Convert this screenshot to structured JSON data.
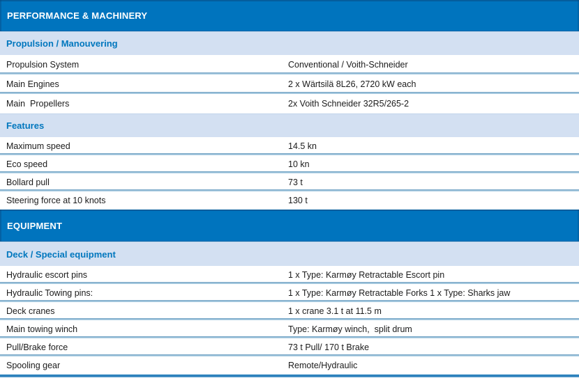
{
  "document": {
    "kind": "vessel-specification-sheet"
  },
  "colors": {
    "section_header_bg": "#0074BE",
    "section_header_text": "#FFFFFF",
    "subsection_bg": "#D3E0F2",
    "subsection_text": "#0077BE",
    "row_text": "#1B1B1B",
    "row_separator_top": "#74A3C4",
    "row_separator_bottom": "#B6D5E8",
    "bottom_rule": "#1B79B8"
  },
  "sections": [
    {
      "kind": "header",
      "label": "PERFORMANCE & MACHINERY"
    },
    {
      "kind": "subheader",
      "label": "Propulsion / Manouvering"
    },
    {
      "kind": "row",
      "label": "Propulsion System",
      "value": "Conventional / Voith-Schneider"
    },
    {
      "kind": "row",
      "label": "Main Engines",
      "value": "2 x Wärtsilä 8L26, 2720 kW each"
    },
    {
      "kind": "row",
      "label": "Main  Propellers",
      "value": "2x Voith Schneider 32R5/265-2"
    },
    {
      "kind": "subheader",
      "label": "Features"
    },
    {
      "kind": "row",
      "label": "Maximum speed",
      "value": "14.5 kn"
    },
    {
      "kind": "row",
      "label": "Eco speed",
      "value": "10 kn"
    },
    {
      "kind": "row",
      "label": "Bollard pull",
      "value": "73 t"
    },
    {
      "kind": "row",
      "label": "Steering force at 10 knots",
      "value": "130 t"
    },
    {
      "kind": "header",
      "label": "EQUIPMENT"
    },
    {
      "kind": "subheader",
      "label": "Deck / Special equipment"
    },
    {
      "kind": "row",
      "label": "Hydraulic escort pins",
      "value": "1 x Type: Karmøy Retractable Escort pin"
    },
    {
      "kind": "row",
      "label": "Hydraulic Towing pins:",
      "value": "1 x Type: Karmøy Retractable Forks 1 x Type: Sharks jaw"
    },
    {
      "kind": "row",
      "label": "Deck cranes",
      "value": "1 x crane 3.1 t at 11.5 m"
    },
    {
      "kind": "row",
      "label": "Main towing winch",
      "value": "Type: Karmøy winch,  split drum"
    },
    {
      "kind": "row",
      "label": "Pull/Brake force",
      "value": "73 t Pull/ 170 t Brake"
    },
    {
      "kind": "row",
      "label": "Spooling gear",
      "value": "Remote/Hydraulic"
    }
  ]
}
